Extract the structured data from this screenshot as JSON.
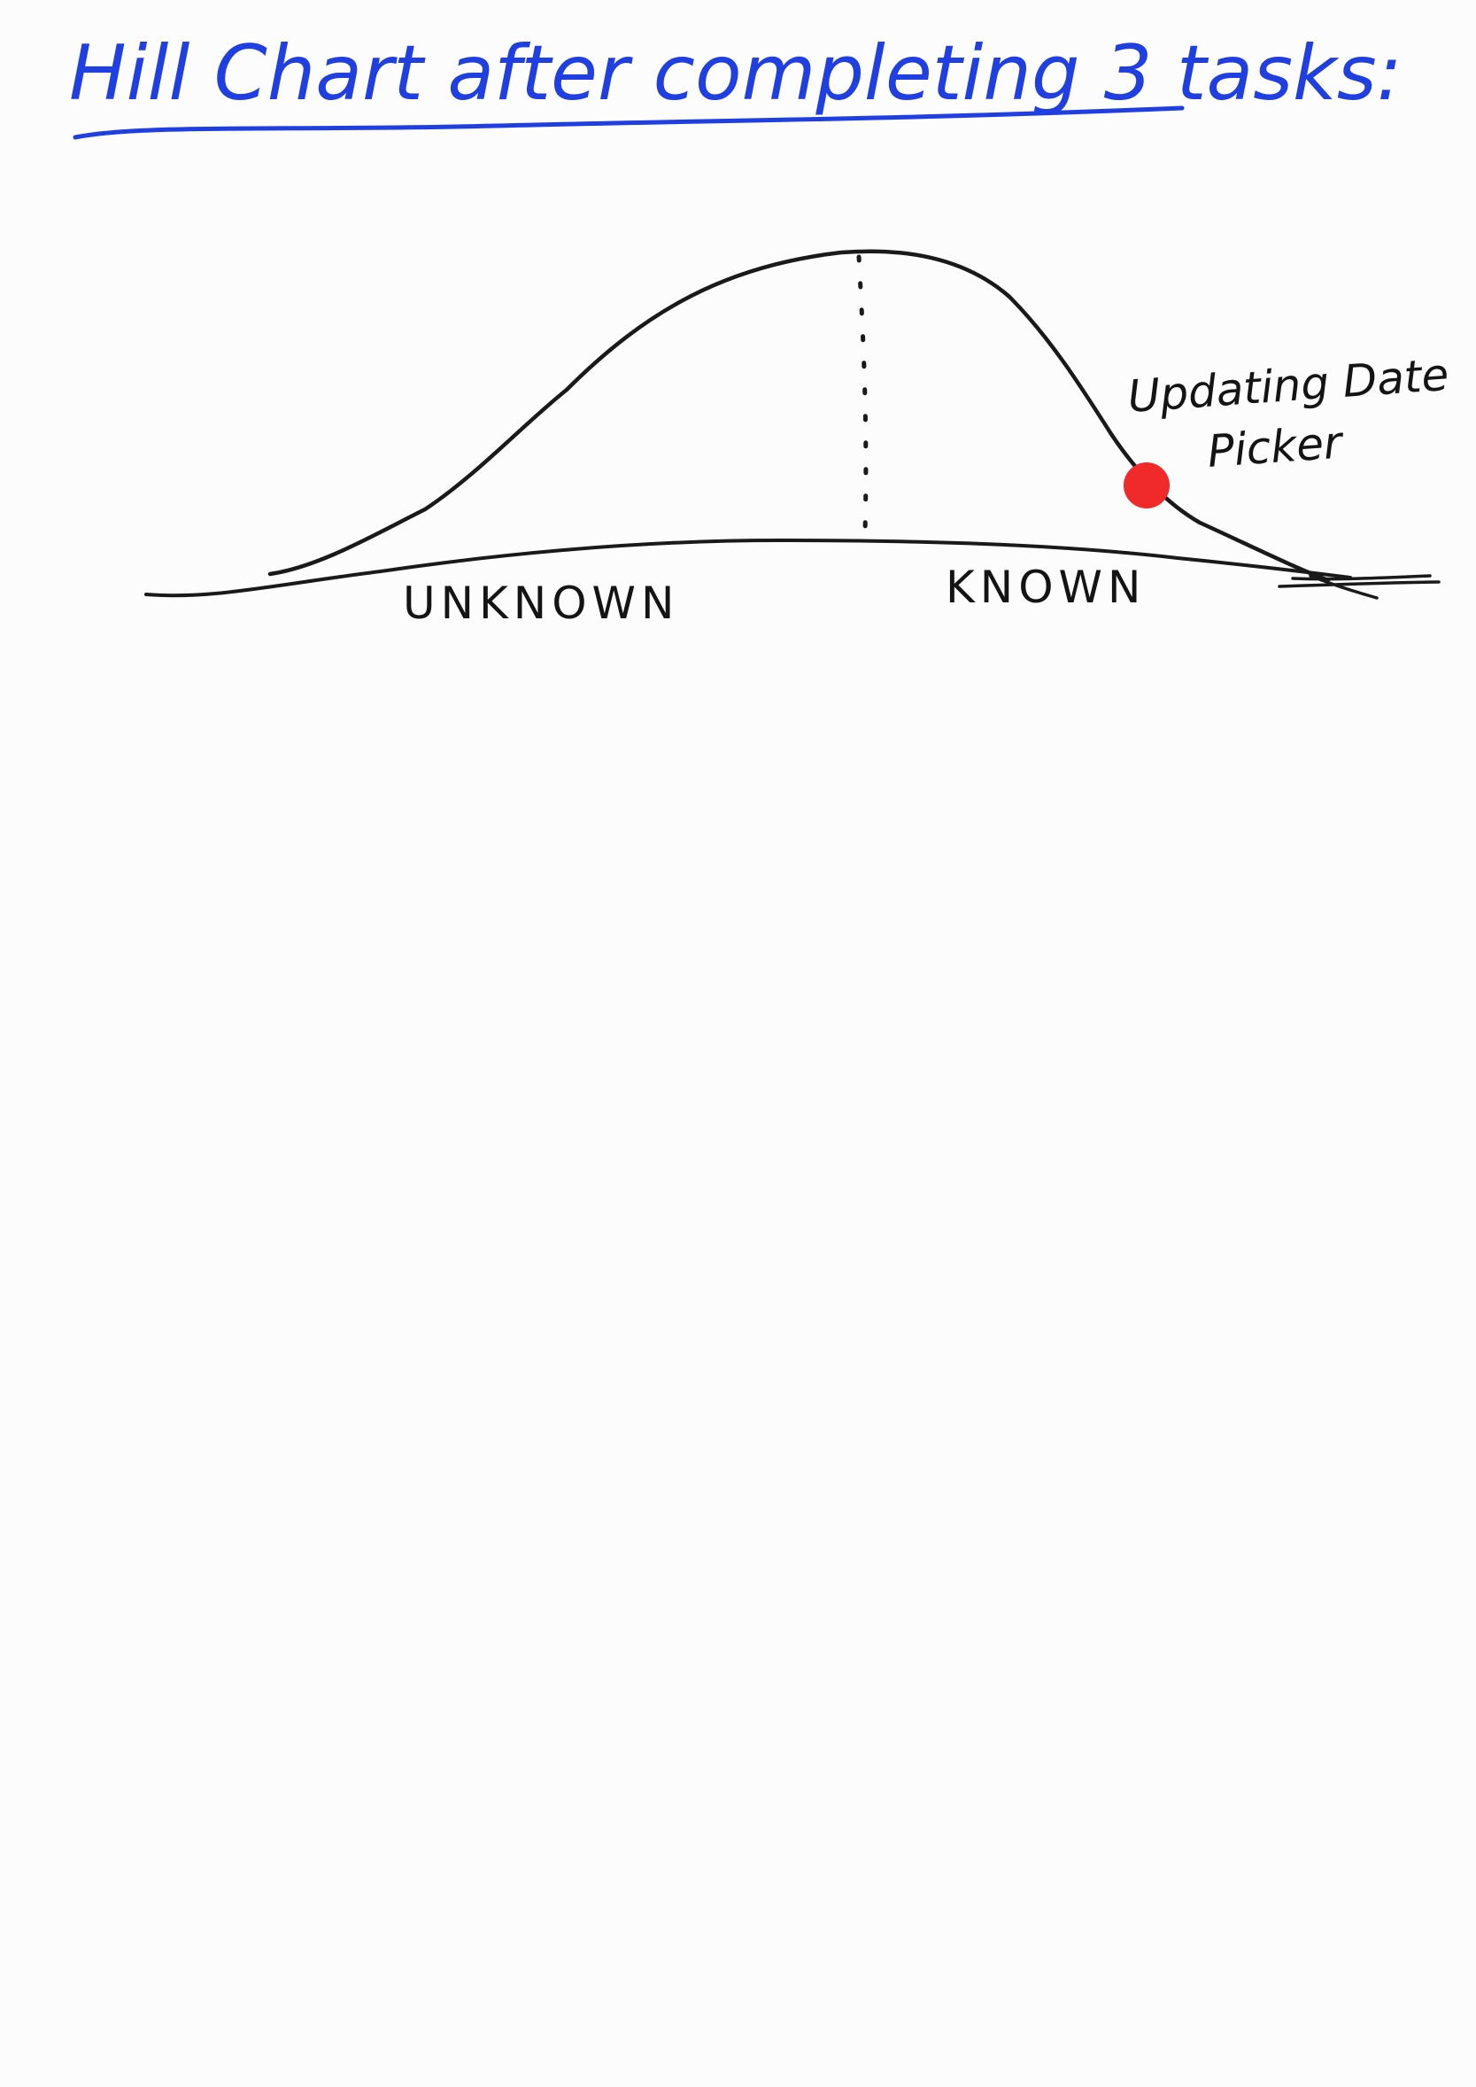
{
  "title": "Hill Chart after completing 3 tasks:",
  "colors": {
    "title_ink": "#1f3fe0",
    "line_ink": "#1a1a1a",
    "marker": "#f02a2a",
    "paper": "#fcfcfc"
  },
  "regions": {
    "left_label": "UNKNOWN",
    "right_label": "KNOWN"
  },
  "tasks": [
    {
      "label_line1": "Updating Date",
      "label_line2": "Picker",
      "color": "#f02a2a"
    }
  ]
}
